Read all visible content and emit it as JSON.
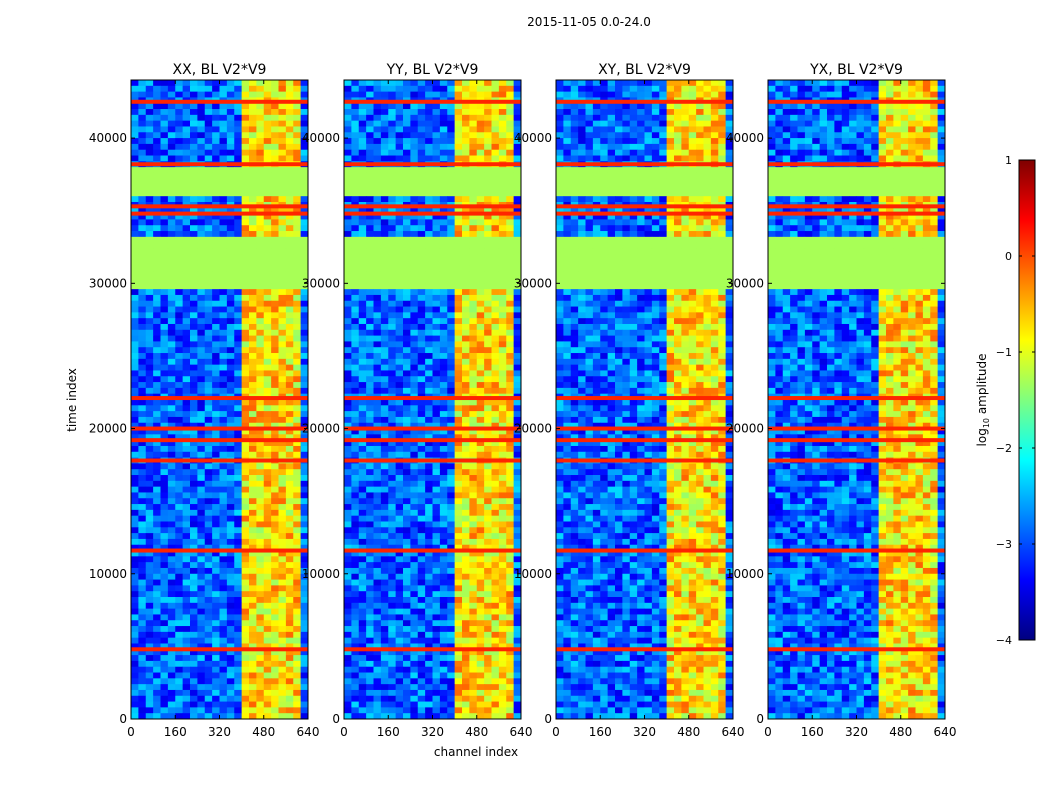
{
  "figure": {
    "suptitle": "2015-11-05 0.0-24.0",
    "xlabel": "channel index",
    "ylabel": "time index"
  },
  "colorbar": {
    "label": "log10 amplitude",
    "label_base": "log",
    "label_sub": "10",
    "label_rest": " amplitude",
    "range": [
      -4,
      1
    ],
    "ticks": [
      1,
      0,
      -1,
      -2,
      -3,
      -4
    ],
    "tick_labels": [
      "1",
      "0",
      "−1",
      "−2",
      "−3",
      "−4"
    ],
    "colormap": [
      "#00007f",
      "#0000ff",
      "#007fff",
      "#00ffff",
      "#7fff7f",
      "#ffff00",
      "#ff7f00",
      "#ff0000",
      "#7f0000"
    ]
  },
  "chart_data": {
    "type": "heatmap",
    "x_range": [
      0,
      640
    ],
    "y_range": [
      0,
      44000
    ],
    "x_ticks": [
      0,
      160,
      320,
      480,
      640
    ],
    "y_ticks": [
      0,
      10000,
      20000,
      30000,
      40000
    ],
    "x_tick_labels": [
      "0",
      "160",
      "320",
      "480",
      "640"
    ],
    "y_tick_labels": [
      "0",
      "10000",
      "20000",
      "30000",
      "40000"
    ],
    "color_scale": "log10 amplitude",
    "value_range": [
      -4,
      1
    ],
    "panels": [
      {
        "title": "XX, BL V2*V9",
        "strong_channel_range": [
          400,
          640
        ]
      },
      {
        "title": "YY, BL V2*V9",
        "strong_channel_range": [
          400,
          640
        ]
      },
      {
        "title": "XY, BL V2*V9",
        "strong_channel_range": [
          400,
          640
        ]
      },
      {
        "title": "YX, BL V2*V9",
        "strong_channel_range": [
          400,
          640
        ]
      }
    ],
    "flagged_time_ranges": [
      [
        29500,
        33000
      ],
      [
        36000,
        38000
      ]
    ],
    "strong_rows": [
      4800,
      11600,
      17800,
      19200,
      20000,
      22100,
      34800,
      35300,
      38200,
      42500
    ]
  }
}
